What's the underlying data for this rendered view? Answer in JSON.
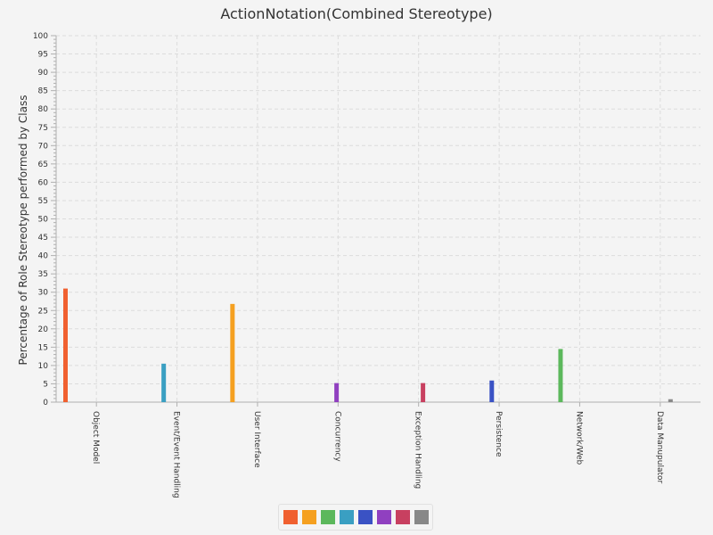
{
  "chart_data": {
    "type": "bar",
    "title": "ActionNotation(Combined Stereotype)",
    "xlabel": "",
    "ylabel": "Percentage of Role Stereotype performed by Class",
    "ylim": [
      0,
      100
    ],
    "yticks": [
      0,
      5,
      10,
      15,
      20,
      25,
      30,
      35,
      40,
      45,
      50,
      55,
      60,
      65,
      70,
      75,
      80,
      85,
      90,
      95,
      100
    ],
    "categories": [
      "Object Model",
      "Event/Event Handling",
      "User Interface",
      "Concurrency",
      "Exception Handling",
      "Persistence",
      "Network/Web",
      "Data Manupulator"
    ],
    "series": [
      {
        "values": [
          31,
          0,
          0,
          0,
          0,
          0,
          0,
          0
        ],
        "color": "#f06030"
      },
      {
        "values": [
          0,
          0,
          26.8,
          0,
          0,
          0,
          0,
          0
        ],
        "color": "#f5a020"
      },
      {
        "values": [
          0,
          0,
          0,
          0,
          0,
          0,
          14.5,
          0
        ],
        "color": "#5cb85c"
      },
      {
        "values": [
          0,
          10.5,
          0,
          0,
          0,
          0,
          0,
          0
        ],
        "color": "#3a9fc2"
      },
      {
        "values": [
          0,
          0,
          0,
          0,
          0,
          5.9,
          0,
          0
        ],
        "color": "#3a52c4"
      },
      {
        "values": [
          0,
          0,
          0,
          5.2,
          0,
          0,
          0,
          0
        ],
        "color": "#9040c0"
      },
      {
        "values": [
          0,
          0,
          0,
          0,
          5.2,
          0,
          0,
          0
        ],
        "color": "#c84060"
      },
      {
        "values": [
          0,
          0,
          0,
          0,
          0,
          0,
          0,
          0.8
        ],
        "color": "#888888"
      }
    ],
    "grid": true,
    "legend_position": "bottom"
  }
}
